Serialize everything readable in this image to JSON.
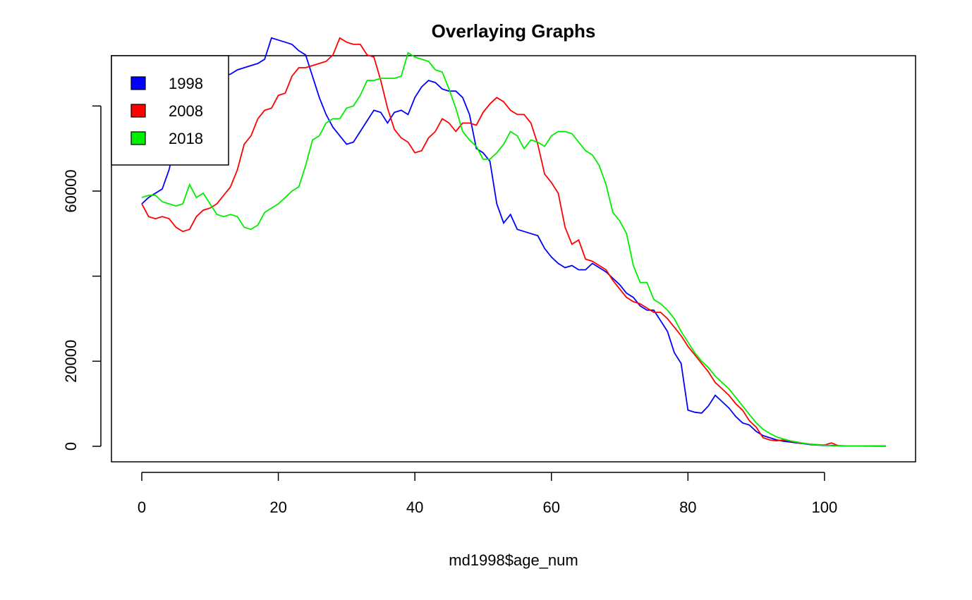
{
  "chart_data": {
    "type": "line",
    "title": "Overlaying Graphs",
    "xlabel": "md1998$age_num",
    "ylabel": "",
    "xlim": [
      0,
      109
    ],
    "ylim": [
      0,
      90000
    ],
    "xticks": [
      0,
      20,
      40,
      60,
      80,
      100
    ],
    "xtick_labels": [
      "0",
      "20",
      "40",
      "60",
      "80",
      "100"
    ],
    "yticks": [
      0,
      20000,
      40000,
      60000,
      80000
    ],
    "ytick_labels": [
      "0",
      "20000",
      "",
      "60000",
      ""
    ],
    "grid": false,
    "legend_position": "top-left",
    "legend": [
      {
        "label": "1998",
        "color": "#0000ff"
      },
      {
        "label": "2008",
        "color": "#ff0000"
      },
      {
        "label": "2018",
        "color": "#00ee00"
      }
    ],
    "series": [
      {
        "name": "1998",
        "color": "#0000ff",
        "values": [
          57000,
          58500,
          59500,
          60500,
          65000,
          72000,
          78000,
          81000,
          82000,
          85000,
          86000,
          86500,
          87000,
          87500,
          88500,
          89000,
          89500,
          90000,
          91000,
          96000,
          95500,
          95000,
          94500,
          93000,
          92000,
          87000,
          82000,
          78000,
          75000,
          73000,
          71000,
          71500,
          74000,
          76500,
          79000,
          78500,
          76000,
          78500,
          79000,
          78000,
          82000,
          84500,
          86000,
          85500,
          84000,
          83500,
          83500,
          82000,
          78000,
          70000,
          69000,
          67000,
          57000,
          52500,
          54500,
          51000,
          50500,
          50000,
          49500,
          46500,
          44500,
          43000,
          42000,
          42500,
          41500,
          41500,
          43000,
          42000,
          41000,
          39500,
          38000,
          36000,
          35000,
          33000,
          32000,
          32000,
          29500,
          27000,
          22000,
          19500,
          8500,
          8000,
          7800,
          9500,
          12000,
          10500,
          9000,
          7000,
          5500,
          5000,
          3500,
          2500,
          2000,
          1500,
          1200,
          1000,
          800,
          600,
          400,
          300,
          200,
          200,
          150,
          100,
          100,
          100,
          100,
          50,
          50,
          50
        ]
      },
      {
        "name": "2008",
        "color": "#ff0000",
        "values": [
          57000,
          54000,
          53500,
          54000,
          53500,
          51500,
          50500,
          51000,
          54000,
          55500,
          56000,
          57000,
          59000,
          61000,
          65000,
          71000,
          73000,
          77000,
          79000,
          79500,
          82500,
          83000,
          87000,
          89000,
          89000,
          89500,
          90000,
          90500,
          92000,
          96000,
          95000,
          94500,
          94500,
          92000,
          91500,
          86000,
          79500,
          74500,
          72500,
          71500,
          69000,
          69500,
          72500,
          74000,
          77000,
          76000,
          74000,
          76000,
          76000,
          75500,
          78500,
          80500,
          82000,
          81000,
          79000,
          78000,
          78000,
          76000,
          71000,
          64000,
          62000,
          59500,
          51500,
          47500,
          48500,
          44000,
          43500,
          42500,
          41500,
          39000,
          37000,
          35000,
          34000,
          33500,
          32500,
          31500,
          31500,
          30000,
          28000,
          26000,
          23500,
          21500,
          19500,
          17500,
          15000,
          13500,
          12000,
          10000,
          8500,
          6000,
          4500,
          2000,
          1500,
          1300,
          1500,
          1200,
          900,
          700,
          500,
          400,
          300,
          800,
          150,
          100,
          100,
          100,
          50,
          50,
          50,
          50
        ]
      },
      {
        "name": "2018",
        "color": "#00ee00",
        "values": [
          58500,
          59000,
          59000,
          57500,
          57000,
          56500,
          57000,
          61500,
          58500,
          59500,
          57000,
          54500,
          54000,
          54500,
          54000,
          51500,
          51000,
          52000,
          55000,
          56000,
          57000,
          58500,
          60000,
          61000,
          66000,
          72000,
          73000,
          76000,
          77000,
          77000,
          79500,
          80000,
          82500,
          86000,
          86000,
          86500,
          86500,
          86500,
          87000,
          92500,
          91500,
          91000,
          90500,
          88500,
          88000,
          84000,
          79500,
          74000,
          72000,
          70500,
          67500,
          67500,
          69000,
          71000,
          74000,
          73000,
          70000,
          72000,
          71500,
          70500,
          73000,
          74000,
          74000,
          73500,
          71500,
          69500,
          68500,
          66000,
          61500,
          55000,
          53000,
          50000,
          42500,
          38500,
          38500,
          34500,
          33500,
          32000,
          30000,
          27000,
          24500,
          22000,
          20000,
          18500,
          16500,
          15000,
          13500,
          11500,
          9500,
          7500,
          5500,
          4000,
          3000,
          2200,
          1700,
          1300,
          1000,
          700,
          500,
          350,
          250,
          150,
          100,
          100,
          100,
          100,
          100,
          50,
          50,
          50
        ]
      }
    ]
  }
}
